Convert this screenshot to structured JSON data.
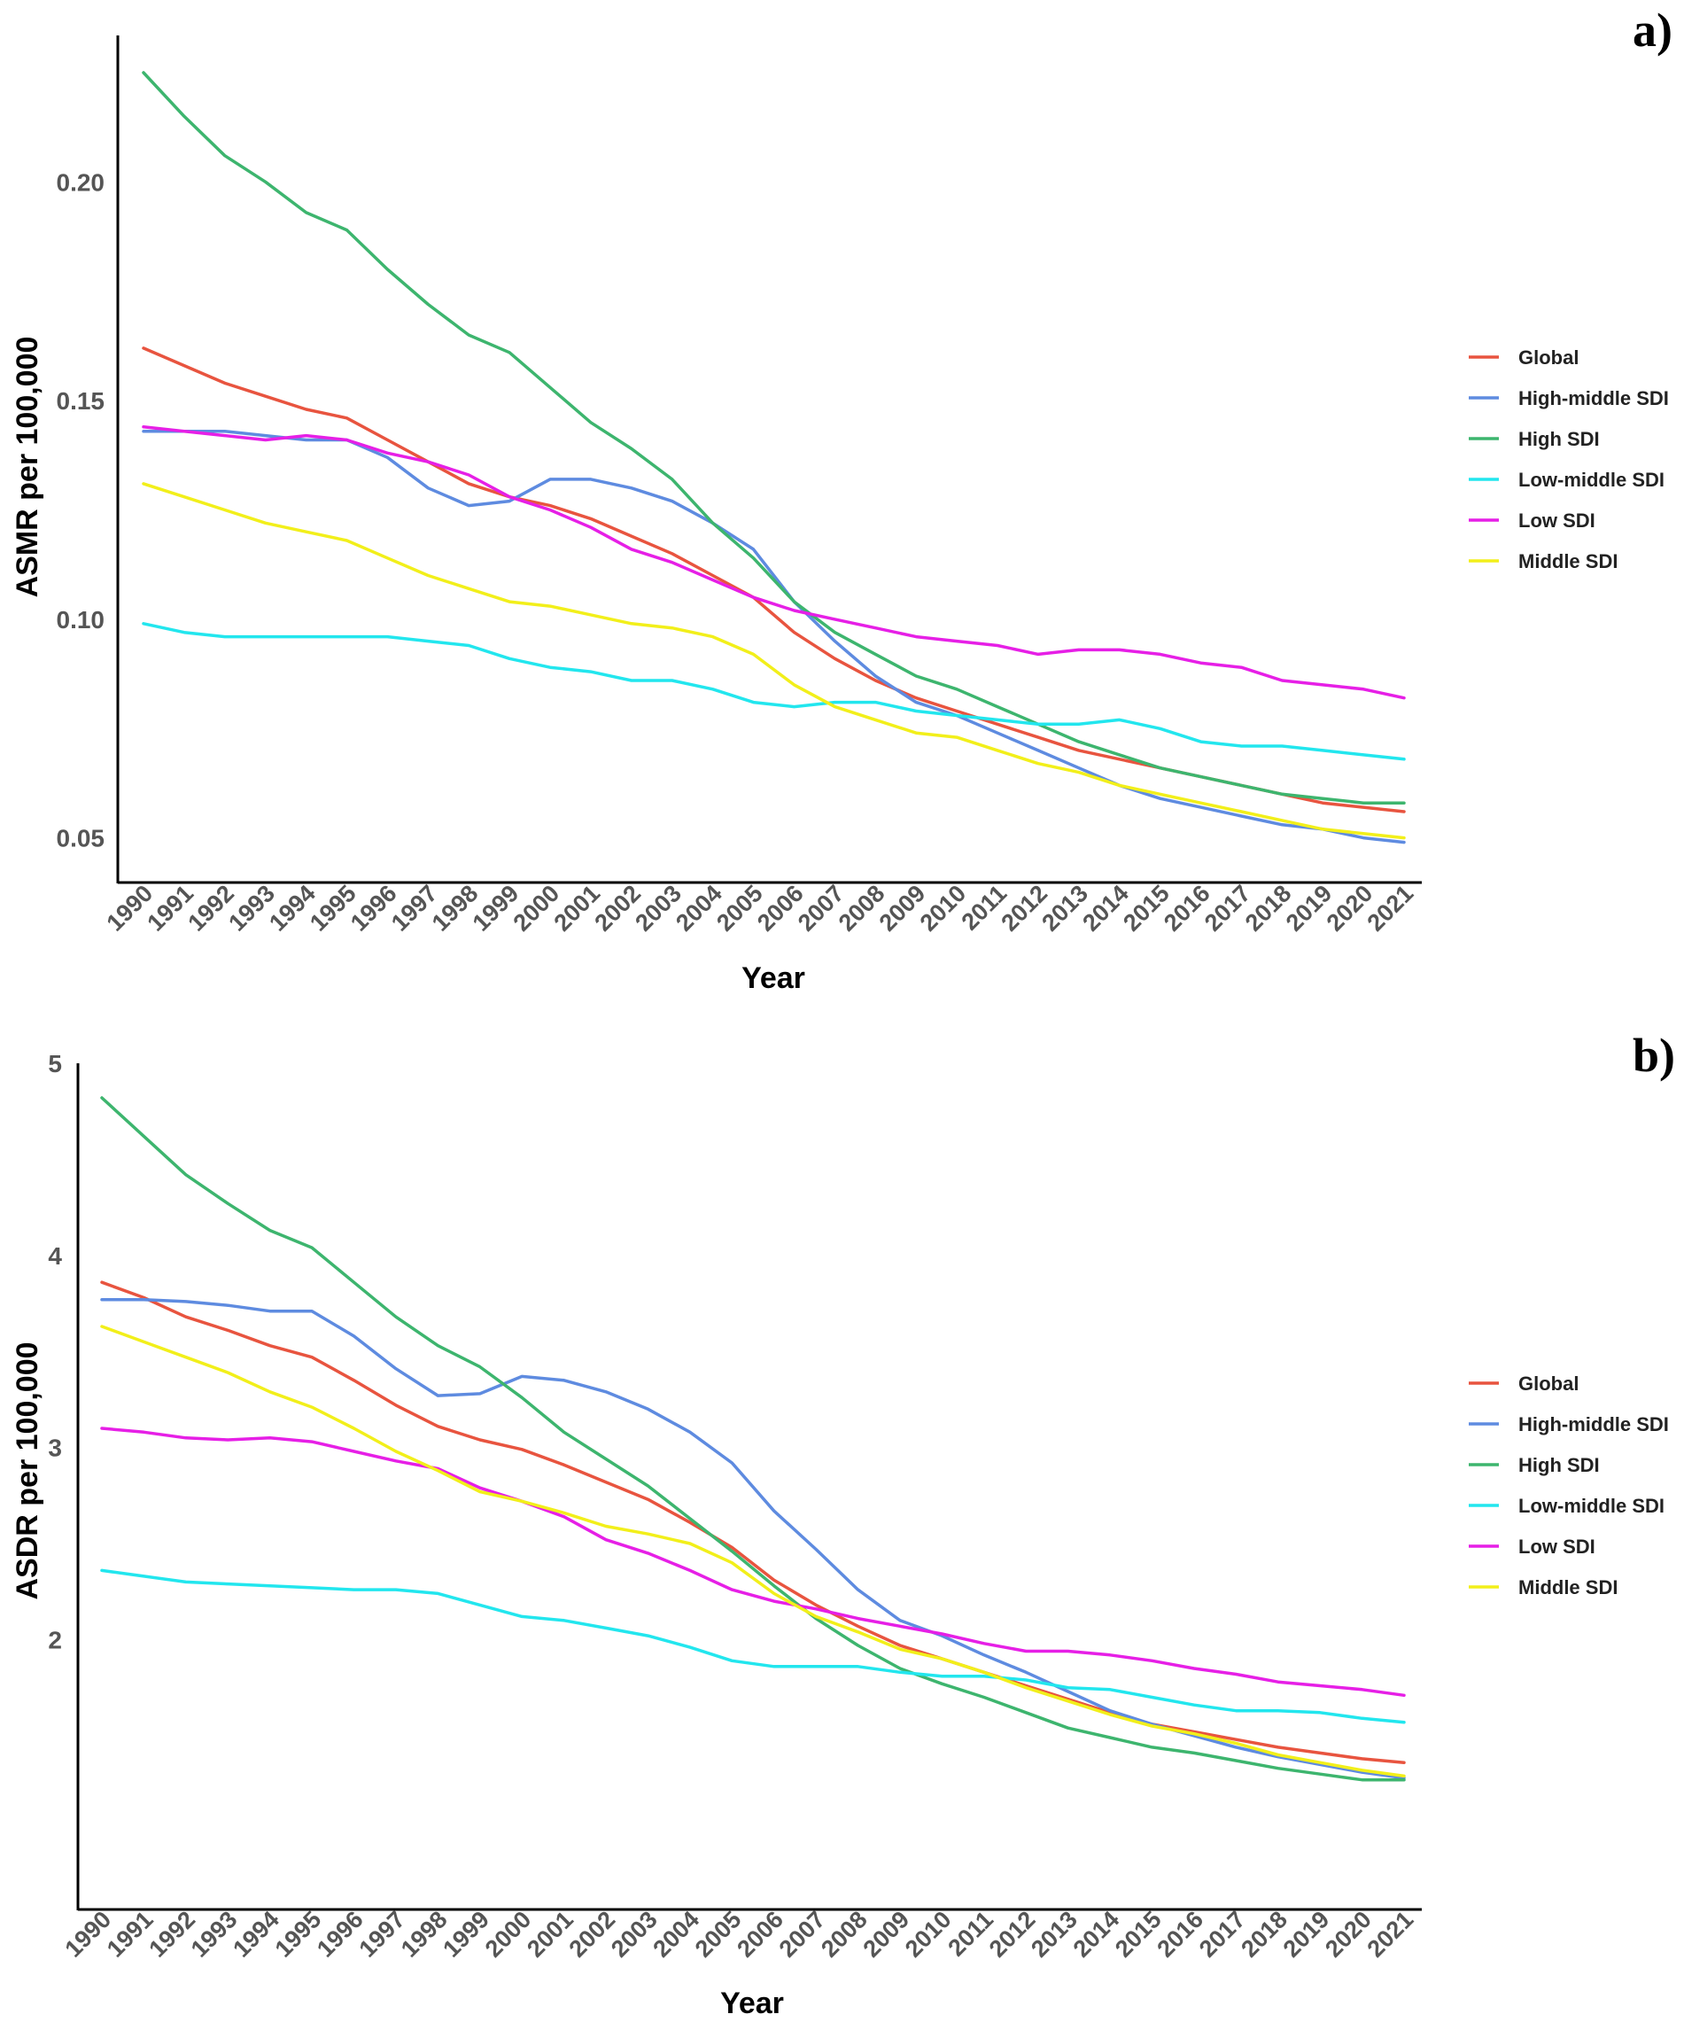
{
  "colors": {
    "Global": "#e8543f",
    "High-middle SDI": "#5e8be0",
    "High SDI": "#3db56e",
    "Low-middle SDI": "#22e6ee",
    "Low SDI": "#e61fe6",
    "Middle SDI": "#f2ef1a"
  },
  "chart_data": [
    {
      "panel_label": "a)",
      "type": "line",
      "xlabel": "Year",
      "ylabel": "ASMR per 100,000",
      "ylim": [
        0.04,
        0.2335
      ],
      "yticks": [
        0.05,
        0.1,
        0.15,
        0.2
      ],
      "ytick_labels": [
        "0.05",
        "0.10",
        "0.15",
        "0.20"
      ],
      "x": [
        1990,
        1991,
        1992,
        1993,
        1994,
        1995,
        1996,
        1997,
        1998,
        1999,
        2000,
        2001,
        2002,
        2003,
        2004,
        2005,
        2006,
        2007,
        2008,
        2009,
        2010,
        2011,
        2012,
        2013,
        2014,
        2015,
        2016,
        2017,
        2018,
        2019,
        2020,
        2021
      ],
      "legend_position": "right",
      "series": [
        {
          "name": "Global",
          "values": [
            0.162,
            0.158,
            0.154,
            0.151,
            0.148,
            0.146,
            0.141,
            0.136,
            0.131,
            0.128,
            0.126,
            0.123,
            0.119,
            0.115,
            0.11,
            0.105,
            0.097,
            0.091,
            0.086,
            0.082,
            0.079,
            0.076,
            0.073,
            0.07,
            0.068,
            0.066,
            0.064,
            0.062,
            0.06,
            0.058,
            0.057,
            0.056
          ]
        },
        {
          "name": "High-middle SDI",
          "values": [
            0.143,
            0.143,
            0.143,
            0.142,
            0.141,
            0.141,
            0.137,
            0.13,
            0.126,
            0.127,
            0.132,
            0.132,
            0.13,
            0.127,
            0.122,
            0.116,
            0.104,
            0.095,
            0.087,
            0.081,
            0.078,
            0.074,
            0.07,
            0.066,
            0.062,
            0.059,
            0.057,
            0.055,
            0.053,
            0.052,
            0.05,
            0.049
          ]
        },
        {
          "name": "High SDI",
          "values": [
            0.225,
            0.215,
            0.206,
            0.2,
            0.193,
            0.189,
            0.18,
            0.172,
            0.165,
            0.161,
            0.153,
            0.145,
            0.139,
            0.132,
            0.122,
            0.114,
            0.104,
            0.097,
            0.092,
            0.087,
            0.084,
            0.08,
            0.076,
            0.072,
            0.069,
            0.066,
            0.064,
            0.062,
            0.06,
            0.059,
            0.058,
            0.058
          ]
        },
        {
          "name": "Low-middle SDI",
          "values": [
            0.099,
            0.097,
            0.096,
            0.096,
            0.096,
            0.096,
            0.096,
            0.095,
            0.094,
            0.091,
            0.089,
            0.088,
            0.086,
            0.086,
            0.084,
            0.081,
            0.08,
            0.081,
            0.081,
            0.079,
            0.078,
            0.077,
            0.076,
            0.076,
            0.077,
            0.075,
            0.072,
            0.071,
            0.071,
            0.07,
            0.069,
            0.068
          ]
        },
        {
          "name": "Low SDI",
          "values": [
            0.144,
            0.143,
            0.142,
            0.141,
            0.142,
            0.141,
            0.138,
            0.136,
            0.133,
            0.128,
            0.125,
            0.121,
            0.116,
            0.113,
            0.109,
            0.105,
            0.102,
            0.1,
            0.098,
            0.096,
            0.095,
            0.094,
            0.092,
            0.093,
            0.093,
            0.092,
            0.09,
            0.089,
            0.086,
            0.085,
            0.084,
            0.082
          ]
        },
        {
          "name": "Middle SDI",
          "values": [
            0.131,
            0.128,
            0.125,
            0.122,
            0.12,
            0.118,
            0.114,
            0.11,
            0.107,
            0.104,
            0.103,
            0.101,
            0.099,
            0.098,
            0.096,
            0.092,
            0.085,
            0.08,
            0.077,
            0.074,
            0.073,
            0.07,
            0.067,
            0.065,
            0.062,
            0.06,
            0.058,
            0.056,
            0.054,
            0.052,
            0.051,
            0.05
          ]
        }
      ]
    },
    {
      "panel_label": "b)",
      "type": "line",
      "xlabel": "Year",
      "ylabel": "ASDR per 100,000",
      "ylim": [
        0.6,
        5.0
      ],
      "yticks": [
        2,
        3,
        4,
        5
      ],
      "ytick_labels": [
        "2",
        "3",
        "4",
        "5"
      ],
      "x": [
        1990,
        1991,
        1992,
        1993,
        1994,
        1995,
        1996,
        1997,
        1998,
        1999,
        2000,
        2001,
        2002,
        2003,
        2004,
        2005,
        2006,
        2007,
        2008,
        2009,
        2010,
        2011,
        2012,
        2013,
        2014,
        2015,
        2016,
        2017,
        2018,
        2019,
        2020,
        2021
      ],
      "legend_position": "right",
      "series": [
        {
          "name": "Global",
          "values": [
            3.86,
            3.78,
            3.68,
            3.61,
            3.53,
            3.47,
            3.35,
            3.22,
            3.11,
            3.04,
            2.99,
            2.91,
            2.82,
            2.73,
            2.61,
            2.48,
            2.31,
            2.18,
            2.07,
            1.97,
            1.9,
            1.83,
            1.76,
            1.69,
            1.62,
            1.56,
            1.52,
            1.48,
            1.44,
            1.41,
            1.38,
            1.36
          ]
        },
        {
          "name": "High-middle SDI",
          "values": [
            3.77,
            3.77,
            3.76,
            3.74,
            3.71,
            3.71,
            3.58,
            3.41,
            3.27,
            3.28,
            3.37,
            3.35,
            3.29,
            3.2,
            3.08,
            2.92,
            2.67,
            2.47,
            2.26,
            2.1,
            2.02,
            1.92,
            1.83,
            1.73,
            1.63,
            1.56,
            1.5,
            1.44,
            1.39,
            1.35,
            1.31,
            1.28
          ]
        },
        {
          "name": "High SDI",
          "values": [
            4.82,
            4.62,
            4.42,
            4.27,
            4.13,
            4.04,
            3.86,
            3.68,
            3.53,
            3.42,
            3.26,
            3.08,
            2.94,
            2.8,
            2.63,
            2.46,
            2.28,
            2.11,
            1.97,
            1.85,
            1.77,
            1.7,
            1.62,
            1.54,
            1.49,
            1.44,
            1.41,
            1.37,
            1.33,
            1.3,
            1.27,
            1.27
          ]
        },
        {
          "name": "Low-middle SDI",
          "values": [
            2.36,
            2.33,
            2.3,
            2.29,
            2.28,
            2.27,
            2.26,
            2.26,
            2.24,
            2.18,
            2.12,
            2.1,
            2.06,
            2.02,
            1.96,
            1.89,
            1.86,
            1.86,
            1.86,
            1.83,
            1.81,
            1.81,
            1.79,
            1.75,
            1.74,
            1.7,
            1.66,
            1.63,
            1.63,
            1.62,
            1.59,
            1.57
          ]
        },
        {
          "name": "Low SDI",
          "values": [
            3.1,
            3.08,
            3.05,
            3.04,
            3.05,
            3.03,
            2.98,
            2.93,
            2.89,
            2.79,
            2.72,
            2.64,
            2.52,
            2.45,
            2.36,
            2.26,
            2.2,
            2.16,
            2.11,
            2.07,
            2.03,
            1.98,
            1.94,
            1.94,
            1.92,
            1.89,
            1.85,
            1.82,
            1.78,
            1.76,
            1.74,
            1.71
          ]
        },
        {
          "name": "Middle SDI",
          "values": [
            3.63,
            3.55,
            3.47,
            3.39,
            3.29,
            3.21,
            3.1,
            2.98,
            2.88,
            2.77,
            2.72,
            2.66,
            2.59,
            2.55,
            2.5,
            2.4,
            2.24,
            2.12,
            2.04,
            1.95,
            1.9,
            1.83,
            1.75,
            1.68,
            1.61,
            1.55,
            1.51,
            1.46,
            1.4,
            1.36,
            1.32,
            1.29
          ]
        }
      ]
    }
  ]
}
